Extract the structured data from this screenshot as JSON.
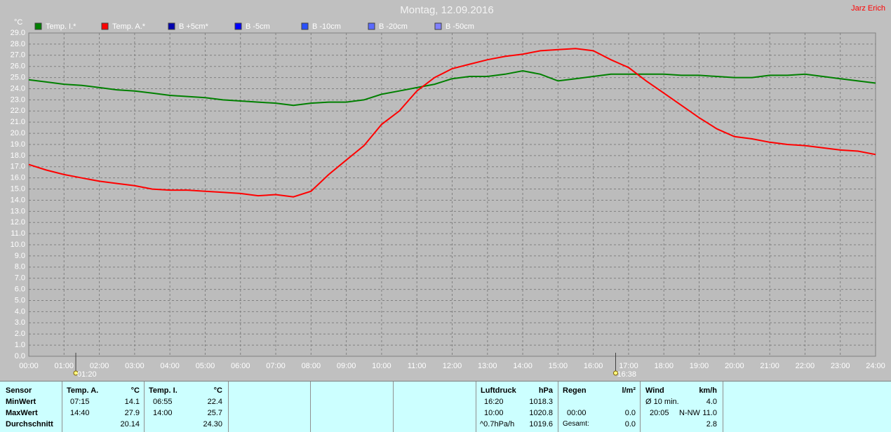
{
  "chart_data": {
    "type": "line",
    "title": "Montag, 12.09.2016",
    "author": "Jarz Erich",
    "y_unit": "°C",
    "x": [
      0,
      0.5,
      1,
      1.5,
      2,
      2.5,
      3,
      3.5,
      4,
      4.5,
      5,
      5.5,
      6,
      6.5,
      7,
      7.5,
      8,
      8.5,
      9,
      9.5,
      10,
      10.5,
      11,
      11.5,
      12,
      12.5,
      13,
      13.5,
      14,
      14.5,
      15,
      15.5,
      16,
      16.5,
      17,
      17.5,
      18,
      18.5,
      19,
      19.5,
      20,
      20.5,
      21,
      21.5,
      22,
      22.5,
      23,
      23.5,
      24
    ],
    "series": [
      {
        "name": "Temp. I.*",
        "color": "#008000",
        "values": [
          24.8,
          24.6,
          24.4,
          24.3,
          24.1,
          23.9,
          23.8,
          23.6,
          23.4,
          23.3,
          23.2,
          23.0,
          22.9,
          22.8,
          22.7,
          22.5,
          22.7,
          22.8,
          22.8,
          23.0,
          23.5,
          23.8,
          24.1,
          24.4,
          24.9,
          25.1,
          25.1,
          25.3,
          25.6,
          25.3,
          24.7,
          24.9,
          25.1,
          25.3,
          25.3,
          25.3,
          25.3,
          25.2,
          25.2,
          25.1,
          25.0,
          25.0,
          25.2,
          25.2,
          25.3,
          25.1,
          24.9,
          24.7,
          24.5
        ]
      },
      {
        "name": "Temp. A.*",
        "color": "#ff0000",
        "values": [
          17.2,
          16.7,
          16.3,
          16.0,
          15.7,
          15.5,
          15.3,
          15.0,
          14.9,
          14.9,
          14.8,
          14.7,
          14.6,
          14.4,
          14.5,
          14.3,
          14.8,
          16.3,
          17.6,
          18.9,
          20.8,
          22.0,
          23.8,
          25.0,
          25.8,
          26.2,
          26.6,
          26.9,
          27.1,
          27.4,
          27.5,
          27.6,
          27.4,
          26.6,
          25.9,
          24.7,
          23.6,
          22.5,
          21.4,
          20.4,
          19.7,
          19.5,
          19.2,
          19.0,
          18.9,
          18.7,
          18.5,
          18.4,
          18.1
        ]
      }
    ],
    "other_sensors": [
      {
        "name": "B +5cm*",
        "color": "#0000b0"
      },
      {
        "name": "B -5cm",
        "color": "#0000ff"
      },
      {
        "name": "B -10cm",
        "color": "#2850ff"
      },
      {
        "name": "B -20cm",
        "color": "#5a6aff"
      },
      {
        "name": "B -50cm",
        "color": "#8080ff"
      }
    ],
    "xlim": [
      0,
      24
    ],
    "ylim": [
      0,
      29
    ],
    "grid": true,
    "xticks": [
      {
        "value": 0,
        "label": "00:00"
      },
      {
        "value": 1,
        "label": "01:00"
      },
      {
        "value": 2,
        "label": "02:00"
      },
      {
        "value": 3,
        "label": "03:00"
      },
      {
        "value": 4,
        "label": "04:00"
      },
      {
        "value": 5,
        "label": "05:00"
      },
      {
        "value": 6,
        "label": "06:00"
      },
      {
        "value": 7,
        "label": "07:00"
      },
      {
        "value": 8,
        "label": "08:00"
      },
      {
        "value": 9,
        "label": "09:00"
      },
      {
        "value": 10,
        "label": "10:00"
      },
      {
        "value": 11,
        "label": "11:00"
      },
      {
        "value": 12,
        "label": "12:00"
      },
      {
        "value": 13,
        "label": "13:00"
      },
      {
        "value": 14,
        "label": "14:00"
      },
      {
        "value": 15,
        "label": "15:00"
      },
      {
        "value": 16,
        "label": "16:00"
      },
      {
        "value": 17,
        "label": "17:00"
      },
      {
        "value": 18,
        "label": "18:00"
      },
      {
        "value": 19,
        "label": "19:00"
      },
      {
        "value": 20,
        "label": "20:00"
      },
      {
        "value": 21,
        "label": "21:00"
      },
      {
        "value": 22,
        "label": "22:00"
      },
      {
        "value": 23,
        "label": "23:00"
      },
      {
        "value": 24,
        "label": "24:00"
      }
    ],
    "yticks": [
      {
        "value": 0,
        "label": "0.0"
      },
      {
        "value": 1,
        "label": "1.0"
      },
      {
        "value": 2,
        "label": "2.0"
      },
      {
        "value": 3,
        "label": "3.0"
      },
      {
        "value": 4,
        "label": "4.0"
      },
      {
        "value": 5,
        "label": "5.0"
      },
      {
        "value": 6,
        "label": "6.0"
      },
      {
        "value": 7,
        "label": "7.0"
      },
      {
        "value": 8,
        "label": "8.0"
      },
      {
        "value": 9,
        "label": "9.0"
      },
      {
        "value": 10,
        "label": "10.0"
      },
      {
        "value": 11,
        "label": "11.0"
      },
      {
        "value": 12,
        "label": "12.0"
      },
      {
        "value": 13,
        "label": "13.0"
      },
      {
        "value": 14,
        "label": "14.0"
      },
      {
        "value": 15,
        "label": "15.0"
      },
      {
        "value": 16,
        "label": "16.0"
      },
      {
        "value": 17,
        "label": "17.0"
      },
      {
        "value": 18,
        "label": "18.0"
      },
      {
        "value": 19,
        "label": "19.0"
      },
      {
        "value": 20,
        "label": "20.0"
      },
      {
        "value": 21,
        "label": "21.0"
      },
      {
        "value": 22,
        "label": "22.0"
      },
      {
        "value": 23,
        "label": "23.0"
      },
      {
        "value": 24,
        "label": "24.0"
      },
      {
        "value": 25,
        "label": "25.0"
      },
      {
        "value": 26,
        "label": "26.0"
      },
      {
        "value": 27,
        "label": "27.0"
      },
      {
        "value": 28,
        "label": "28.0"
      },
      {
        "value": 29,
        "label": "29.0"
      }
    ],
    "markers": [
      {
        "value": 1.333,
        "label": "01:20"
      },
      {
        "value": 16.633,
        "label": "16:38"
      }
    ]
  },
  "table": {
    "row_labels": [
      "Sensor",
      "MinWert",
      "MaxWert",
      "Durchschnitt"
    ],
    "temp_a": {
      "header": "Temp. A.",
      "unit": "°C",
      "min_time": "07:15",
      "min": "14.1",
      "max_time": "14:40",
      "max": "27.9",
      "avg": "20.14"
    },
    "temp_i": {
      "header": "Temp. I.",
      "unit": "°C",
      "min_time": "06:55",
      "min": "22.4",
      "max_time": "14:00",
      "max": "25.7",
      "avg": "24.30"
    },
    "pressure": {
      "header": "Luftdruck",
      "unit": "hPa",
      "min_time": "16:20",
      "min": "1018.3",
      "max_time": "10:00",
      "max": "1020.8",
      "trend": "^0.7hPa/h",
      "avg": "1019.6"
    },
    "rain": {
      "header": "Regen",
      "unit": "l/m²",
      "max_time": "00:00",
      "max": "0.0",
      "total_label": "Gesamt:",
      "total": "0.0"
    },
    "wind": {
      "header": "Wind",
      "unit": "km/h",
      "avg10_label": "Ø 10 min.",
      "avg10": "4.0",
      "max_time": "20:05",
      "max_dir": "N-NW",
      "max": "11.0",
      "avg": "2.8"
    }
  }
}
